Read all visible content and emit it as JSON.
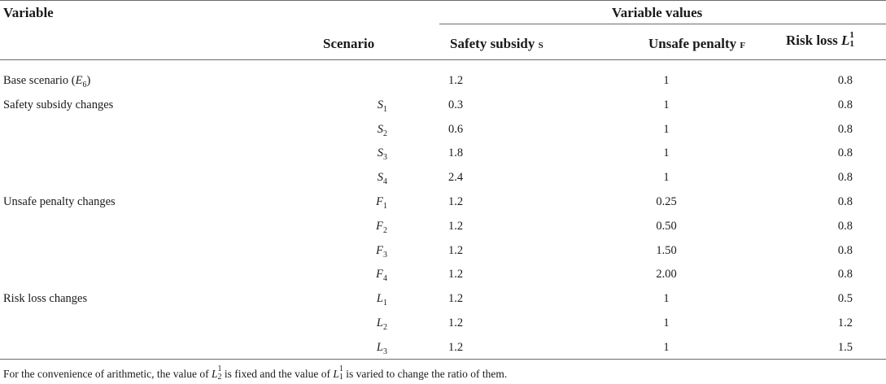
{
  "header": {
    "variable": "Variable",
    "variable_values": "Variable values",
    "scenario": "Scenario",
    "safety_subsidy": "Safety subsidy",
    "safety_subsidy_sym": "S",
    "unsafe_penalty": "Unsafe penalty",
    "unsafe_penalty_sym": "F",
    "risk_loss": "Risk loss",
    "risk_loss_sym": "L",
    "risk_loss_sub": "1",
    "risk_loss_sup": "1"
  },
  "rows": [
    {
      "category": "Base scenario (",
      "category_sym": "E",
      "category_sub": "6",
      "category_tail": ")",
      "scenario": "",
      "scenario_sub": "",
      "s": "1.2",
      "f": "1",
      "l": "0.8"
    },
    {
      "category": "Safety subsidy changes",
      "category_sym": "",
      "category_sub": "",
      "category_tail": "",
      "scenario": "S",
      "scenario_sub": "1",
      "s": "0.3",
      "f": "1",
      "l": "0.8"
    },
    {
      "category": "",
      "category_sym": "",
      "category_sub": "",
      "category_tail": "",
      "scenario": "S",
      "scenario_sub": "2",
      "s": "0.6",
      "f": "1",
      "l": "0.8"
    },
    {
      "category": "",
      "category_sym": "",
      "category_sub": "",
      "category_tail": "",
      "scenario": "S",
      "scenario_sub": "3",
      "s": "1.8",
      "f": "1",
      "l": "0.8"
    },
    {
      "category": "",
      "category_sym": "",
      "category_sub": "",
      "category_tail": "",
      "scenario": "S",
      "scenario_sub": "4",
      "s": "2.4",
      "f": "1",
      "l": "0.8"
    },
    {
      "category": "Unsafe penalty changes",
      "category_sym": "",
      "category_sub": "",
      "category_tail": "",
      "scenario": "F",
      "scenario_sub": "1",
      "s": "1.2",
      "f": "0.25",
      "l": "0.8"
    },
    {
      "category": "",
      "category_sym": "",
      "category_sub": "",
      "category_tail": "",
      "scenario": "F",
      "scenario_sub": "2",
      "s": "1.2",
      "f": "0.50",
      "l": "0.8"
    },
    {
      "category": "",
      "category_sym": "",
      "category_sub": "",
      "category_tail": "",
      "scenario": "F",
      "scenario_sub": "3",
      "s": "1.2",
      "f": "1.50",
      "l": "0.8"
    },
    {
      "category": "",
      "category_sym": "",
      "category_sub": "",
      "category_tail": "",
      "scenario": "F",
      "scenario_sub": "4",
      "s": "1.2",
      "f": "2.00",
      "l": "0.8"
    },
    {
      "category": "Risk loss changes",
      "category_sym": "",
      "category_sub": "",
      "category_tail": "",
      "scenario": "L",
      "scenario_sub": "1",
      "s": "1.2",
      "f": "1",
      "l": "0.5"
    },
    {
      "category": "",
      "category_sym": "",
      "category_sub": "",
      "category_tail": "",
      "scenario": "L",
      "scenario_sub": "2",
      "s": "1.2",
      "f": "1",
      "l": "1.2"
    },
    {
      "category": "",
      "category_sym": "",
      "category_sub": "",
      "category_tail": "",
      "scenario": "L",
      "scenario_sub": "3",
      "s": "1.2",
      "f": "1",
      "l": "1.5"
    }
  ],
  "footnote": {
    "part1": "For the convenience of arithmetic, the value of ",
    "sym1": "L",
    "sub1": "2",
    "sup1": "1",
    "part2": " is fixed and the value of ",
    "sym2": "L",
    "sub2": "1",
    "sup2": "1",
    "part3": " is varied to change the ratio of them."
  }
}
